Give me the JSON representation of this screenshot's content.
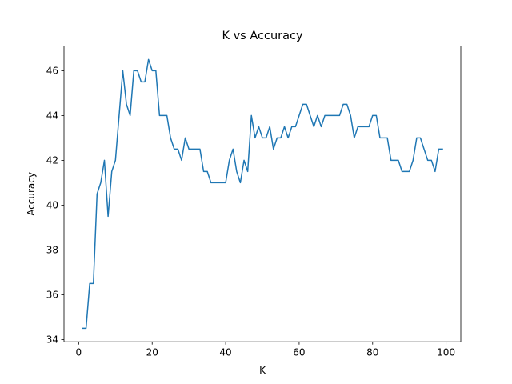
{
  "chart_data": {
    "type": "line",
    "title": "K vs Accuracy",
    "xlabel": "K",
    "ylabel": "Accuracy",
    "xlim": [
      -4,
      104
    ],
    "ylim": [
      33.9,
      47.1
    ],
    "x_ticks": [
      0,
      20,
      40,
      60,
      80,
      100
    ],
    "y_ticks": [
      34,
      36,
      38,
      40,
      42,
      44,
      46
    ],
    "grid": false,
    "series": [
      {
        "color": "#1f77b4",
        "x": [
          1,
          2,
          3,
          4,
          5,
          6,
          7,
          8,
          9,
          10,
          11,
          12,
          13,
          14,
          15,
          16,
          17,
          18,
          19,
          20,
          21,
          22,
          23,
          24,
          25,
          26,
          27,
          28,
          29,
          30,
          31,
          32,
          33,
          34,
          35,
          36,
          37,
          38,
          39,
          40,
          41,
          42,
          43,
          44,
          45,
          46,
          47,
          48,
          49,
          50,
          51,
          52,
          53,
          54,
          55,
          56,
          57,
          58,
          59,
          60,
          61,
          62,
          63,
          64,
          65,
          66,
          67,
          68,
          69,
          70,
          71,
          72,
          73,
          74,
          75,
          76,
          77,
          78,
          79,
          80,
          81,
          82,
          83,
          84,
          85,
          86,
          87,
          88,
          89,
          90,
          91,
          92,
          93,
          94,
          95,
          96,
          97,
          98,
          99
        ],
        "y": [
          34.5,
          34.5,
          36.5,
          36.5,
          40.5,
          41,
          42,
          39.5,
          41.5,
          42,
          44,
          46,
          44.5,
          44,
          46,
          46,
          45.5,
          45.5,
          46.5,
          46,
          46,
          44,
          44,
          44,
          43,
          42.5,
          42.5,
          42,
          43,
          42.5,
          42.5,
          42.5,
          42.5,
          41.5,
          41.5,
          41,
          41,
          41,
          41,
          41,
          42,
          42.5,
          41.5,
          41,
          42,
          41.5,
          44,
          43,
          43.5,
          43,
          43,
          43.5,
          42.5,
          43,
          43,
          43.5,
          43,
          43.5,
          43.5,
          44,
          44.5,
          44.5,
          44,
          43.5,
          44,
          43.5,
          44,
          44,
          44,
          44,
          44,
          44.5,
          44.5,
          44,
          43,
          43.5,
          43.5,
          43.5,
          43.5,
          44,
          44,
          43,
          43,
          43,
          42,
          42,
          42,
          41.5,
          41.5,
          41.5,
          42,
          43,
          43,
          42.5,
          42,
          42,
          41.5,
          42.5,
          42.5
        ]
      }
    ]
  }
}
